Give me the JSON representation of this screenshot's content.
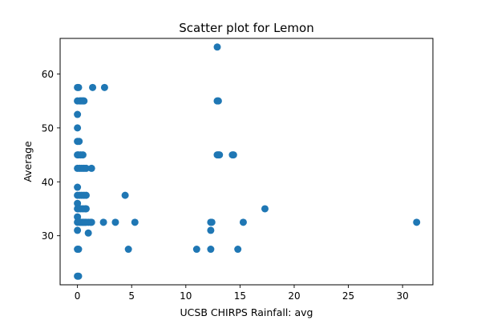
{
  "colors": {
    "marker": "#1f77b4",
    "axis": "#000000",
    "background": "#ffffff"
  },
  "chart_data": {
    "type": "scatter",
    "title": "Scatter plot for Lemon",
    "xlabel": "UCSB CHIRPS Rainfall: avg",
    "ylabel": "Average",
    "xlim": [
      -1.6,
      32.8
    ],
    "ylim": [
      20.9,
      66.6
    ],
    "xticks": [
      0,
      5,
      10,
      15,
      20,
      25,
      30
    ],
    "xtick_labels": [
      "0",
      "5",
      "10",
      "15",
      "20",
      "25",
      "30"
    ],
    "yticks": [
      30,
      40,
      50,
      60
    ],
    "ytick_labels": [
      "30",
      "40",
      "50",
      "60"
    ],
    "grid": false,
    "legend": "none",
    "series": [
      {
        "points": [
          [
            0,
            57.5
          ],
          [
            0,
            55
          ],
          [
            0,
            52.5
          ],
          [
            0,
            50
          ],
          [
            0,
            47.5
          ],
          [
            0,
            45
          ],
          [
            0,
            42.5
          ],
          [
            0,
            39
          ],
          [
            0,
            37.5
          ],
          [
            0,
            36
          ],
          [
            0,
            35
          ],
          [
            0,
            33.5
          ],
          [
            0,
            32.5
          ],
          [
            0,
            31
          ],
          [
            0,
            27.5
          ],
          [
            0,
            22.5
          ],
          [
            0.1,
            57.5
          ],
          [
            0.2,
            55
          ],
          [
            0.15,
            47.5
          ],
          [
            0.1,
            45
          ],
          [
            0.2,
            42.5
          ],
          [
            0.2,
            37.5
          ],
          [
            0.1,
            35
          ],
          [
            0.2,
            32.5
          ],
          [
            0.1,
            27.5
          ],
          [
            0.1,
            22.5
          ],
          [
            0.3,
            55
          ],
          [
            0.4,
            55
          ],
          [
            0.5,
            55
          ],
          [
            0.6,
            55
          ],
          [
            0.3,
            45
          ],
          [
            0.5,
            45
          ],
          [
            0.4,
            42.5
          ],
          [
            0.6,
            42.5
          ],
          [
            0.8,
            42.5
          ],
          [
            1.3,
            42.5
          ],
          [
            0.4,
            37.5
          ],
          [
            0.6,
            37.5
          ],
          [
            0.8,
            37.5
          ],
          [
            0.3,
            35
          ],
          [
            0.5,
            35
          ],
          [
            0.7,
            35
          ],
          [
            0.8,
            35
          ],
          [
            0.3,
            32.5
          ],
          [
            0.4,
            32.5
          ],
          [
            0.5,
            32.5
          ],
          [
            0.6,
            32.5
          ],
          [
            0.7,
            32.5
          ],
          [
            0.8,
            32.5
          ],
          [
            1.0,
            32.5
          ],
          [
            1.2,
            32.5
          ],
          [
            1.3,
            32.5
          ],
          [
            1.0,
            30.5
          ],
          [
            1.4,
            57.5
          ],
          [
            2.5,
            57.5
          ],
          [
            2.4,
            32.5
          ],
          [
            3.5,
            32.5
          ],
          [
            5.3,
            32.5
          ],
          [
            4.4,
            37.5
          ],
          [
            4.7,
            27.5
          ],
          [
            11.0,
            27.5
          ],
          [
            12.3,
            27.5
          ],
          [
            12.3,
            32.5
          ],
          [
            12.4,
            32.5
          ],
          [
            12.3,
            31
          ],
          [
            12.9,
            65
          ],
          [
            12.9,
            55
          ],
          [
            13.0,
            55
          ],
          [
            12.9,
            45
          ],
          [
            13.0,
            45
          ],
          [
            13.1,
            45
          ],
          [
            14.3,
            45
          ],
          [
            14.4,
            45
          ],
          [
            14.8,
            27.5
          ],
          [
            15.3,
            32.5
          ],
          [
            17.3,
            35
          ],
          [
            31.3,
            32.5
          ]
        ]
      }
    ]
  }
}
